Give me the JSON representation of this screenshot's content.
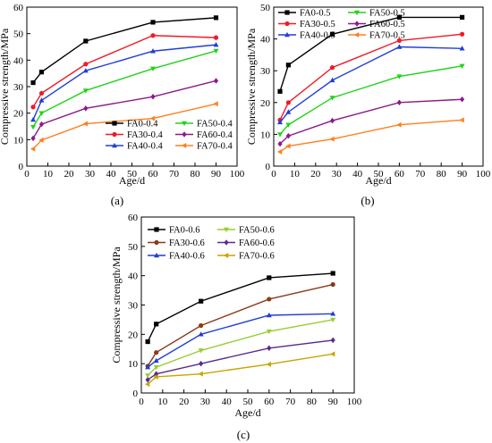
{
  "figure": {
    "panel_labels": [
      "(a)",
      "(b)",
      "(c)"
    ]
  },
  "chart_data": [
    {
      "type": "line",
      "panel": "(a)",
      "xlabel": "Age/d",
      "ylabel": "Compressive strength/MPa",
      "xlim": [
        0,
        100
      ],
      "ylim": [
        0,
        60
      ],
      "xticks": [
        0,
        10,
        20,
        30,
        40,
        50,
        60,
        70,
        80,
        90,
        100
      ],
      "yticks": [
        0,
        10,
        20,
        30,
        40,
        50,
        60
      ],
      "legend_position": "bottom-right, two columns",
      "x": [
        3,
        7,
        28,
        60,
        90
      ],
      "series": [
        {
          "name": "FA0-0.4",
          "color": "#000000",
          "marker": "square",
          "values": [
            31.5,
            35.5,
            47.2,
            54.3,
            56.0
          ]
        },
        {
          "name": "FA30-0.4",
          "color": "#ee1c25",
          "marker": "circle",
          "values": [
            22.3,
            27.5,
            38.5,
            49.3,
            48.5
          ]
        },
        {
          "name": "FA40-0.4",
          "color": "#1f3fd6",
          "marker": "triangle-up",
          "values": [
            17.5,
            24.8,
            36.0,
            43.4,
            45.8
          ]
        },
        {
          "name": "FA50-0.4",
          "color": "#22d21a",
          "marker": "triangle-down",
          "values": [
            14.8,
            20.0,
            28.5,
            36.8,
            43.5
          ]
        },
        {
          "name": "FA60-0.4",
          "color": "#8b1a8b",
          "marker": "diamond",
          "values": [
            10.5,
            15.8,
            21.8,
            26.2,
            32.2
          ]
        },
        {
          "name": "FA70-0.4",
          "color": "#ff7f1f",
          "marker": "triangle-left",
          "values": [
            6.5,
            9.8,
            16.0,
            18.0,
            23.5
          ]
        }
      ]
    },
    {
      "type": "line",
      "panel": "(b)",
      "xlabel": "Age/d",
      "ylabel": "Compressive strength/MPa",
      "xlim": [
        0,
        100
      ],
      "ylim": [
        0,
        50
      ],
      "xticks": [
        0,
        10,
        20,
        30,
        40,
        50,
        60,
        70,
        80,
        90,
        100
      ],
      "yticks": [
        0,
        10,
        20,
        30,
        40,
        50
      ],
      "legend_position": "top-left, two columns",
      "x": [
        3,
        7,
        28,
        60,
        90
      ],
      "series": [
        {
          "name": "FA0-0.5",
          "color": "#000000",
          "marker": "square",
          "values": [
            23.5,
            31.8,
            41.5,
            46.8,
            46.8
          ]
        },
        {
          "name": "FA30-0.5",
          "color": "#ee1c25",
          "marker": "circle",
          "values": [
            14.5,
            20.0,
            31.0,
            39.5,
            41.5
          ]
        },
        {
          "name": "FA40-0.5",
          "color": "#1f3fd6",
          "marker": "triangle-up",
          "values": [
            13.8,
            17.0,
            27.0,
            37.5,
            37.0
          ]
        },
        {
          "name": "FA50-0.5",
          "color": "#22d21a",
          "marker": "triangle-down",
          "values": [
            10.0,
            13.0,
            21.5,
            28.2,
            31.5
          ]
        },
        {
          "name": "FA60-0.5",
          "color": "#8b1a8b",
          "marker": "diamond",
          "values": [
            7.0,
            9.5,
            14.3,
            20.0,
            21.0
          ]
        },
        {
          "name": "FA70-0.5",
          "color": "#ff7f1f",
          "marker": "triangle-left",
          "values": [
            4.5,
            6.3,
            8.5,
            13.0,
            14.5
          ]
        }
      ]
    },
    {
      "type": "line",
      "panel": "(c)",
      "xlabel": "Age/d",
      "ylabel": "Compressive strength/MPa",
      "xlim": [
        0,
        100
      ],
      "ylim": [
        0,
        60
      ],
      "xticks": [
        0,
        10,
        20,
        30,
        40,
        50,
        60,
        70,
        80,
        90,
        100
      ],
      "yticks": [
        0,
        10,
        20,
        30,
        40,
        50,
        60
      ],
      "legend_position": "top-left, two columns",
      "x": [
        3,
        7,
        28,
        60,
        90
      ],
      "series": [
        {
          "name": "FA0-0.6",
          "color": "#000000",
          "marker": "square",
          "values": [
            17.5,
            23.5,
            31.3,
            39.3,
            40.8
          ]
        },
        {
          "name": "FA30-0.6",
          "color": "#8b3a1a",
          "marker": "circle",
          "values": [
            9.2,
            13.8,
            23.0,
            32.0,
            37.0
          ]
        },
        {
          "name": "FA40-0.6",
          "color": "#1f3fd6",
          "marker": "triangle-up",
          "values": [
            8.8,
            11.0,
            20.0,
            26.5,
            27.0
          ]
        },
        {
          "name": "FA50-0.6",
          "color": "#9acd32",
          "marker": "triangle-down",
          "values": [
            6.0,
            8.8,
            14.5,
            21.0,
            25.0
          ]
        },
        {
          "name": "FA60-0.6",
          "color": "#5b2c8e",
          "marker": "diamond",
          "values": [
            4.5,
            6.5,
            10.0,
            15.3,
            18.0
          ]
        },
        {
          "name": "FA70-0.6",
          "color": "#c8a400",
          "marker": "triangle-left",
          "values": [
            3.0,
            5.5,
            6.5,
            9.8,
            13.3
          ]
        }
      ]
    }
  ]
}
